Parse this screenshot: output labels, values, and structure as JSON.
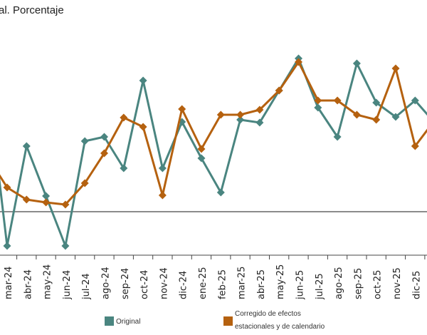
{
  "chart_data": {
    "type": "line",
    "title": "al. Porcentaje",
    "categories": [
      "mar-24",
      "abr-24",
      "may-24",
      "jun-24",
      "jul-24",
      "ago-24",
      "sep-24",
      "oct-24",
      "nov-24",
      "dic-24",
      "ene-25",
      "feb-25",
      "mar-25",
      "abr-25",
      "may-25",
      "jun-25",
      "jul-25",
      "ago-25",
      "sep-25",
      "oct-25",
      "nov-25",
      "dic-25"
    ],
    "series": [
      {
        "name": "Original",
        "color": "#4a8580",
        "values": [
          -0.96,
          1.84,
          0.44,
          -0.96,
          1.98,
          2.1,
          1.22,
          3.68,
          1.22,
          2.52,
          1.5,
          0.54,
          2.58,
          2.5,
          3.4,
          4.3,
          2.92,
          2.1,
          4.16,
          3.06,
          2.66,
          3.12
        ],
        "lead_in": 3.64,
        "lead_out": 2.5
      },
      {
        "name": "Corregido de efectos estacionales y de calendario",
        "color": "#b5610f",
        "values": [
          0.68,
          0.34,
          0.26,
          0.2,
          0.8,
          1.64,
          2.64,
          2.38,
          0.46,
          2.88,
          1.76,
          2.72,
          2.72,
          2.86,
          3.4,
          4.2,
          3.12,
          3.12,
          2.72,
          2.58,
          4.02,
          1.84
        ],
        "lead_in": 1.54,
        "lead_out": 2.56
      }
    ],
    "legend": {
      "line1_original": "Original",
      "corrected_line1": "Corregido de efectos",
      "corrected_line2": "estacionales y de calendario",
      "placement": "bottom"
    },
    "zero_line": 0,
    "grid": false
  }
}
